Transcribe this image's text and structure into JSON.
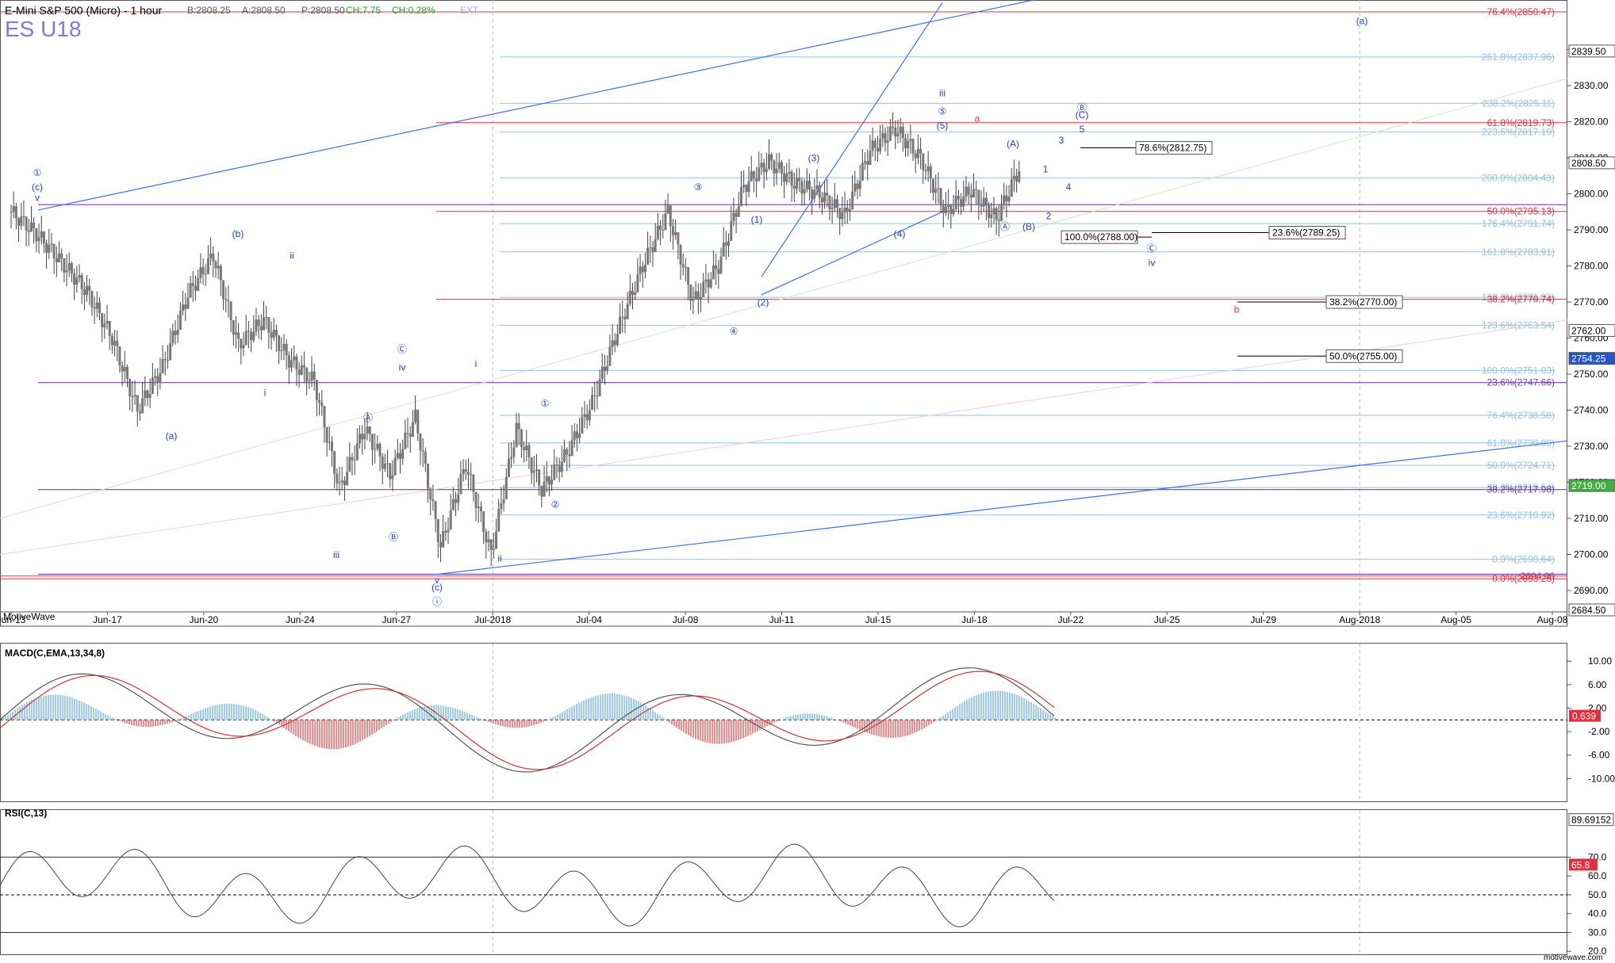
{
  "header": {
    "title": "E-Mini S&P 500 (Micro) - 1 hour",
    "symbol": "ES U18",
    "quote": {
      "bid": "B:2808.25",
      "ask": "A:2808.50",
      "price": "P:2808.50",
      "change": "CH:7.75",
      "change_pct": "CH:0.28%",
      "ext": "EXT"
    }
  },
  "footer": {
    "brand": "MotiveWave",
    "watermark": "motivewave.com"
  },
  "colors": {
    "fib_light": "#8fc2e8",
    "fib_red": "#e03040",
    "purple": "#7a3fa8",
    "wave_blue": "#1f3fcf",
    "trend_blue": "#3f6fe0",
    "macd_pos": "#9ecbe8",
    "macd_neg": "#ef8a8a"
  },
  "chart_data": [
    {
      "type": "line",
      "panel": "price",
      "title": "E-Mini S&P 500 (Micro) - 1 hour",
      "x_ticks": [
        "Jun-13",
        "Jun-17",
        "Jun-20",
        "Jun-24",
        "Jun-27",
        "Jul-2018",
        "Jul-04",
        "Jul-08",
        "Jul-11",
        "Jul-15",
        "Jul-18",
        "Jul-22",
        "Jul-25",
        "Jul-29",
        "Aug-2018",
        "Aug-05",
        "Aug-08"
      ],
      "y_ticks": [
        "2690.00",
        "2700.00",
        "2710.00",
        "2720.00",
        "2730.00",
        "2740.00",
        "2750.00",
        "2760.00",
        "2770.00",
        "2780.00",
        "2790.00",
        "2800.00",
        "2810.00",
        "2820.00",
        "2830.00",
        "2840.00"
      ],
      "ylim": [
        2684.5,
        2852
      ],
      "series": [
        {
          "values": [
            [
              "Jun-13",
              2795
            ],
            [
              "Jun-14",
              2789
            ],
            [
              "Jun-15",
              2781
            ],
            [
              "Jun-16",
              2773
            ],
            [
              "Jun-17",
              2760
            ],
            [
              "Jun-18",
              2740
            ],
            [
              "Jun-19",
              2752
            ],
            [
              "Jun-20",
              2772
            ],
            [
              "Jun-21",
              2783
            ],
            [
              "Jun-22",
              2758
            ],
            [
              "Jun-23",
              2765
            ],
            [
              "Jun-24",
              2754
            ],
            [
              "Jun-25",
              2748
            ],
            [
              "Jun-26",
              2718
            ],
            [
              "Jun-27",
              2735
            ],
            [
              "Jun-28",
              2722
            ],
            [
              "Jun-29",
              2738
            ],
            [
              "Jun-30",
              2702
            ],
            [
              "Jul-01",
              2725
            ],
            [
              "Jul-02",
              2700
            ],
            [
              "Jul-03",
              2735
            ],
            [
              "Jul-04",
              2718
            ],
            [
              "Jul-05",
              2728
            ],
            [
              "Jul-06",
              2742
            ],
            [
              "Jul-07",
              2762
            ],
            [
              "Jul-08",
              2780
            ],
            [
              "Jul-09",
              2795
            ],
            [
              "Jul-10",
              2770
            ],
            [
              "Jul-11",
              2780
            ],
            [
              "Jul-12",
              2802
            ],
            [
              "Jul-13",
              2809
            ],
            [
              "Jul-14",
              2803
            ],
            [
              "Jul-15",
              2800
            ],
            [
              "Jul-16",
              2794
            ],
            [
              "Jul-17",
              2812
            ],
            [
              "Jul-18",
              2818
            ],
            [
              "Jul-19",
              2810
            ],
            [
              "Jul-20",
              2795
            ],
            [
              "Jul-21",
              2801
            ],
            [
              "Jul-22",
              2793
            ],
            [
              "Jul-23",
              2808.5
            ]
          ]
        }
      ],
      "price_tags": [
        {
          "value": "2850.47",
          "label": "76.4%(2850.47)",
          "color": "#e03040"
        },
        {
          "value": "2839.50",
          "label": "2839.50",
          "color": "#000000"
        },
        {
          "value": "2837.96",
          "label": "261.8%(2837.96)",
          "color": "#8fc2e8"
        },
        {
          "value": "2825.11",
          "label": "238.2%(2825.11)",
          "color": "#8fc2e8"
        },
        {
          "value": "2819.73",
          "label": "61.8%(2819.73)",
          "color": "#e03040"
        },
        {
          "value": "2817.19",
          "label": "223.6%(2817.19)",
          "color": "#8fc2e8"
        },
        {
          "value": "2808.50",
          "label": "2808.50",
          "color": "#000000"
        },
        {
          "value": "2804.43",
          "label": "200.0%(2804.43)",
          "color": "#8fc2e8"
        },
        {
          "value": "2795.13",
          "label": "50.0%(2795.13)",
          "color": "#e03040"
        },
        {
          "value": "2791.74",
          "label": "176.4%(2791.74)",
          "color": "#8fc2e8"
        },
        {
          "value": "2783.91",
          "label": "161.8%(2783.91)",
          "color": "#8fc2e8"
        },
        {
          "value": "2771.31",
          "label": "138.2%(2771.31)",
          "color": "#8fc2e8"
        },
        {
          "value": "2770.74",
          "label": "38.2%(2770.74)",
          "color": "#e03040"
        },
        {
          "value": "2763.54",
          "label": "123.6%(2763.54)",
          "color": "#8fc2e8"
        },
        {
          "value": "2762.00",
          "label": "2762.00",
          "color": "#000000"
        },
        {
          "value": "2754.25",
          "label": "2754.25",
          "color": "#2255cc"
        },
        {
          "value": "2751.03",
          "label": "100.0%(2751.03)",
          "color": "#8fc2e8"
        },
        {
          "value": "2747.66",
          "label": "23.6%(2747.66)",
          "color": "#7a3fa8"
        },
        {
          "value": "2738.58",
          "label": "76.4%(2738.58)",
          "color": "#8fc2e8"
        },
        {
          "value": "2730.90",
          "label": "61.8%(2730.90)",
          "color": "#8fc2e8"
        },
        {
          "value": "2724.71",
          "label": "50.0%(2724.71)",
          "color": "#8fc2e8"
        },
        {
          "value": "2719.00",
          "label": "2719.00",
          "color": "#40b040"
        },
        {
          "value": "2718.54",
          "label": "38.2%(2718.54)",
          "color": "#8fc2e8"
        },
        {
          "value": "2717.98",
          "label": "38.2%(2717.98)",
          "color": "#7a3fa8"
        },
        {
          "value": "2710.92",
          "label": "23.6%(2710.92)",
          "color": "#8fc2e8"
        },
        {
          "value": "2698.64",
          "label": "0.0%(2698.64)",
          "color": "#8fc2e8"
        },
        {
          "value": "2694.00",
          "label": "2694.00",
          "color": "#e03040"
        },
        {
          "value": "2693.25",
          "label": "0.0%(2693.25)",
          "color": "#e03040"
        },
        {
          "value": "2684.50",
          "label": "2684.50",
          "color": "#000000"
        }
      ],
      "projection_boxes": [
        "78.6%(2812.75)",
        "100.0%(2788.00)",
        "23.6%(2789.25)",
        "38.2%(2770.00)",
        "50.0%(2755.00)"
      ],
      "wave_labels": [
        "①",
        "(c)",
        "v",
        "(a)",
        "(b)",
        "ii",
        "i",
        "iii",
        "iv",
        "Ⓒ",
        "Ⓐ",
        "Ⓑ",
        "(c)",
        "v",
        "ⓘ",
        "i",
        "ii",
        "①",
        "②",
        "③",
        "④",
        "(1)",
        "(2)",
        "(3)",
        "(4)",
        "(5)",
        "⑤",
        "iii",
        "a",
        "(A)",
        "Ⓐ",
        "(B)",
        "1",
        "2",
        "3",
        "4",
        "5",
        "(C)",
        "Ⓑ",
        "Ⓒ",
        "iv",
        "(a)",
        "b"
      ]
    },
    {
      "type": "bar",
      "panel": "macd",
      "title": "MACD(C,EMA,13,34,8)",
      "y_ticks": [
        "10.00",
        "6.00",
        "2.00",
        "-2.00",
        "-6.00",
        "-10.00"
      ],
      "ylim": [
        -14,
        13
      ],
      "current": "0.639"
    },
    {
      "type": "line",
      "panel": "rsi",
      "title": "RSI(C,13)",
      "y_ticks": [
        "70.0",
        "60.0",
        "50.0",
        "40.0",
        "30.0",
        "20.0"
      ],
      "ylim": [
        18,
        95
      ],
      "levels": [
        70,
        50,
        30
      ],
      "current": "65.8",
      "max_value": "89.69152"
    }
  ]
}
